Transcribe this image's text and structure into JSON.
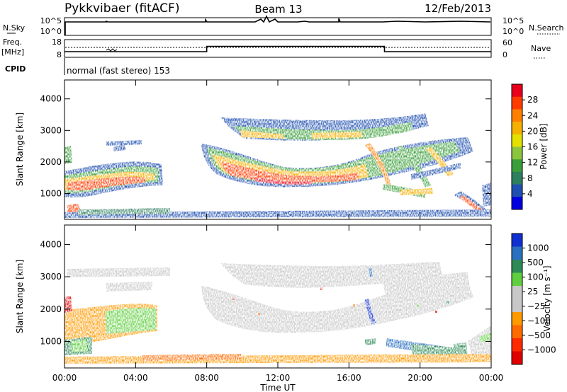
{
  "header": {
    "title": "Pykkvibaer (fitACF)",
    "beam": "Beam 13",
    "date": "12/Feb/2013"
  },
  "nsky_panel": {
    "left_label": "N.Sky",
    "left_ticks": [
      "10^5",
      "10^0"
    ],
    "right_label": "N.Search",
    "right_ticks": [
      "10^5",
      "10^0"
    ]
  },
  "freq_panel": {
    "left_label_top": "Freq.",
    "left_label_unit": "[MHz]",
    "left_ticks": [
      "18",
      "8"
    ],
    "right_label": "Nave",
    "right_ticks": [
      "60",
      "0"
    ],
    "freq_steps": [
      {
        "t0": 0,
        "t1": 8,
        "level": 0.32
      },
      {
        "t0": 8,
        "t1": 18,
        "level": 0.62
      },
      {
        "t0": 18,
        "t1": 24,
        "level": 0.32
      }
    ]
  },
  "cpid_panel": {
    "label": "CPID",
    "mode_text": "normal (fast stereo) 153"
  },
  "chart_data": [
    {
      "type": "heatmap",
      "name": "power",
      "ylabel": "Slant Range [km]",
      "xlabel": "",
      "xlim": [
        0,
        24
      ],
      "ylim": [
        180,
        4600
      ],
      "yticks": [
        "1000",
        "2000",
        "3000",
        "4000"
      ],
      "ytick_values": [
        1000,
        2000,
        3000,
        4000
      ],
      "colorbar": {
        "label": "Power [dB]",
        "ticks": [
          "28",
          "24",
          "20",
          "16",
          "12",
          "8",
          "4"
        ],
        "colors": [
          "#e8001a",
          "#ff3b00",
          "#ff8000",
          "#f5b000",
          "#e4e000",
          "#8cc63f",
          "#3a9e3a",
          "#2d7f5e",
          "#1f4fb0",
          "#0000e0"
        ]
      }
    },
    {
      "type": "heatmap",
      "name": "velocity",
      "ylabel": "Slant Range [km]",
      "xlabel": "Time UT",
      "xlim": [
        0,
        24
      ],
      "ylim": [
        180,
        4600
      ],
      "xticks": [
        "00:00",
        "04:00",
        "08:00",
        "12:00",
        "16:00",
        "20:00",
        "00:00"
      ],
      "xtick_values": [
        0,
        4,
        8,
        12,
        16,
        20,
        24
      ],
      "yticks": [
        "1000",
        "2000",
        "3000",
        "4000"
      ],
      "ytick_values": [
        1000,
        2000,
        3000,
        4000
      ],
      "colorbar": {
        "label": "Velocity [m s⁻¹]",
        "ticks": [
          "1000",
          "500",
          "100",
          "25",
          "−25",
          "−100",
          "−500",
          "−1000"
        ],
        "colors": [
          "#1030d0",
          "#2a70c0",
          "#2e8b57",
          "#5fcf3f",
          "#c8c8c8",
          "#c8c8c8",
          "#ff9a00",
          "#ff6a00",
          "#ff2a00",
          "#e00000"
        ]
      }
    }
  ]
}
